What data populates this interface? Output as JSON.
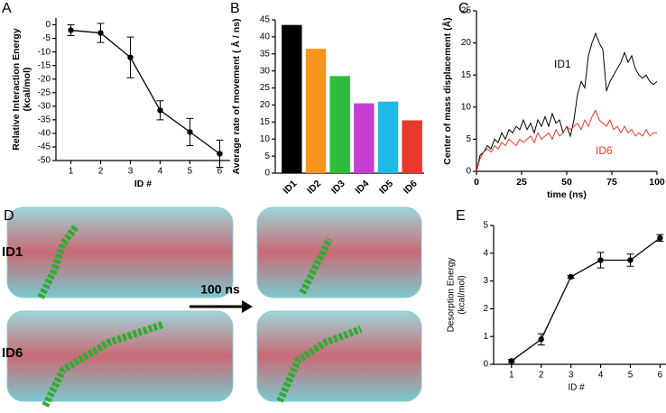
{
  "chart_data": [
    {
      "type": "line",
      "panel": "A",
      "x_label": "ID #",
      "y_label": [
        "Relative Interaction Energy",
        "(kcal/mol)"
      ],
      "x": [
        1,
        2,
        3,
        4,
        5,
        6
      ],
      "values": [
        -2,
        -3,
        -12,
        -31.5,
        -39.5,
        -47.5
      ],
      "errors": [
        2,
        3.5,
        7.5,
        3.5,
        5,
        5
      ],
      "color": "#000000",
      "xlim": [
        0.5,
        6.35
      ],
      "xticks": [
        1,
        2,
        3,
        4,
        5,
        6
      ],
      "ylim": [
        -50,
        2.5
      ],
      "yticks": [
        0,
        -5,
        -10,
        -15,
        -20,
        -25,
        -30,
        -35,
        -40,
        -45,
        -50
      ]
    },
    {
      "type": "bar",
      "panel": "B",
      "y_label": "Average rate of movement ( Å / ns)",
      "categories": [
        "ID1",
        "ID2",
        "ID3",
        "ID4",
        "ID5",
        "ID6"
      ],
      "values": [
        43.5,
        36.5,
        28.5,
        20.5,
        21,
        15.5
      ],
      "colors": [
        "#000000",
        "#f7941d",
        "#2dbd3a",
        "#c63fd3",
        "#1fb8e8",
        "#e8392c"
      ],
      "ylim": [
        0,
        45
      ],
      "yticks": [
        0,
        5,
        10,
        15,
        20,
        25,
        30,
        35,
        40,
        45
      ]
    },
    {
      "type": "timeseries",
      "panel": "C",
      "x_label": "time (ns)",
      "y_label": "Center of mass displacement (Å)",
      "x": [
        0,
        2,
        4,
        6,
        8,
        10,
        12,
        14,
        16,
        18,
        20,
        22,
        24,
        26,
        28,
        30,
        32,
        34,
        36,
        38,
        40,
        42,
        44,
        46,
        48,
        50,
        52,
        54,
        56,
        58,
        60,
        62,
        64,
        66,
        68,
        70,
        72,
        74,
        76,
        78,
        80,
        82,
        84,
        86,
        88,
        90,
        92,
        94,
        96,
        98,
        100
      ],
      "series": [
        {
          "name": "ID1",
          "color": "#000000",
          "values": [
            0,
            2.5,
            3,
            4,
            3.5,
            5,
            4.5,
            6,
            5,
            6.5,
            6,
            7,
            6.5,
            8,
            6.5,
            7.5,
            6,
            8,
            7,
            8.5,
            7,
            9,
            7.5,
            8,
            6,
            7,
            5.5,
            8,
            12,
            14,
            13,
            18,
            20,
            21.5,
            20,
            19,
            12.5,
            14,
            15,
            16,
            17,
            18.5,
            17,
            18,
            16,
            15,
            14.5,
            15,
            14,
            13.5,
            14
          ]
        },
        {
          "name": "ID6",
          "color": "#e8392c",
          "values": [
            0,
            2,
            3,
            3.5,
            3,
            4,
            3.5,
            4.5,
            4,
            5,
            4.5,
            4,
            5,
            4.5,
            5,
            5.5,
            4.5,
            6,
            5,
            5.5,
            6,
            5,
            6.5,
            5.5,
            6,
            7,
            6.5,
            7,
            7.5,
            6.5,
            8,
            7,
            8.5,
            9.5,
            8,
            7.5,
            7,
            8,
            6.5,
            7,
            6,
            7,
            6,
            6.5,
            5.5,
            6,
            5.5,
            6.5,
            5.5,
            6,
            6
          ]
        }
      ],
      "xlim": [
        0,
        100
      ],
      "xticks": [
        0,
        25,
        50,
        75,
        100
      ],
      "ylim": [
        0,
        25
      ],
      "yticks": [
        0,
        5,
        10,
        15,
        20,
        25
      ]
    },
    {
      "type": "line",
      "panel": "E",
      "x_label": "ID #",
      "y_label": [
        "Desorption Energy",
        "(kcal/mol)"
      ],
      "x": [
        1,
        2,
        3,
        4,
        5,
        6
      ],
      "values": [
        0.12,
        0.9,
        3.15,
        3.75,
        3.75,
        4.55
      ],
      "errors": [
        0.05,
        0.2,
        0.05,
        0.28,
        0.22,
        0.12
      ],
      "color": "#000000",
      "xlim": [
        0.4,
        6.2
      ],
      "xticks": [
        1,
        2,
        3,
        4,
        5,
        6
      ],
      "ylim": [
        0,
        5
      ],
      "yticks": [
        0,
        1,
        2,
        3,
        4,
        5
      ]
    }
  ],
  "panel_d": {
    "label": "D",
    "rows": [
      "ID1",
      "ID6"
    ],
    "arrow_label": "100 ns"
  }
}
